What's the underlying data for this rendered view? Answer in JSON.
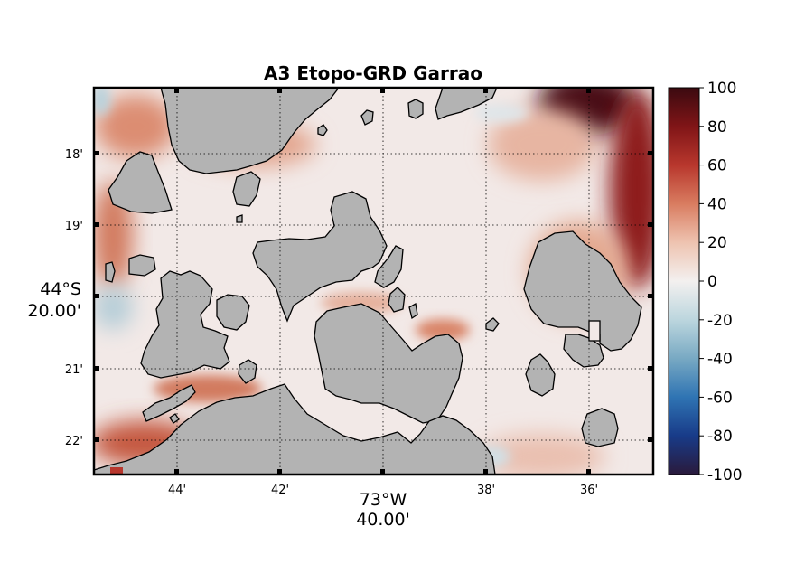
{
  "chart_data": {
    "type": "heatmap",
    "title": "A3 Etopo-GRD Garrao",
    "x_tick_labels": [
      "44'",
      "42'",
      "40'",
      "38'",
      "36'"
    ],
    "y_tick_labels": [
      "18'",
      "19'",
      "20'",
      "21'",
      "22'"
    ],
    "x_center_label": [
      "73°W",
      "40.00'"
    ],
    "y_center_label": [
      "44°S",
      "20.00'"
    ],
    "xlim_minutes": [
      45.4,
      34.6
    ],
    "ylim_minutes": [
      17.0,
      22.5
    ],
    "colorbar": {
      "min": -100,
      "max": 100,
      "tick_labels": [
        "100",
        "80",
        "60",
        "40",
        "20",
        "0",
        "-20",
        "-40",
        "-60",
        "-80",
        "-100"
      ],
      "colors": [
        "#2a1a3c",
        "#183b88",
        "#2f74b3",
        "#78a9c3",
        "#bcd6de",
        "#f3f0ef",
        "#eec3b0",
        "#d97c60",
        "#b8372d",
        "#801517",
        "#3b0a10"
      ]
    },
    "land_color": "#b3b3b3",
    "grid": "dotted",
    "notes_hidden": false
  }
}
